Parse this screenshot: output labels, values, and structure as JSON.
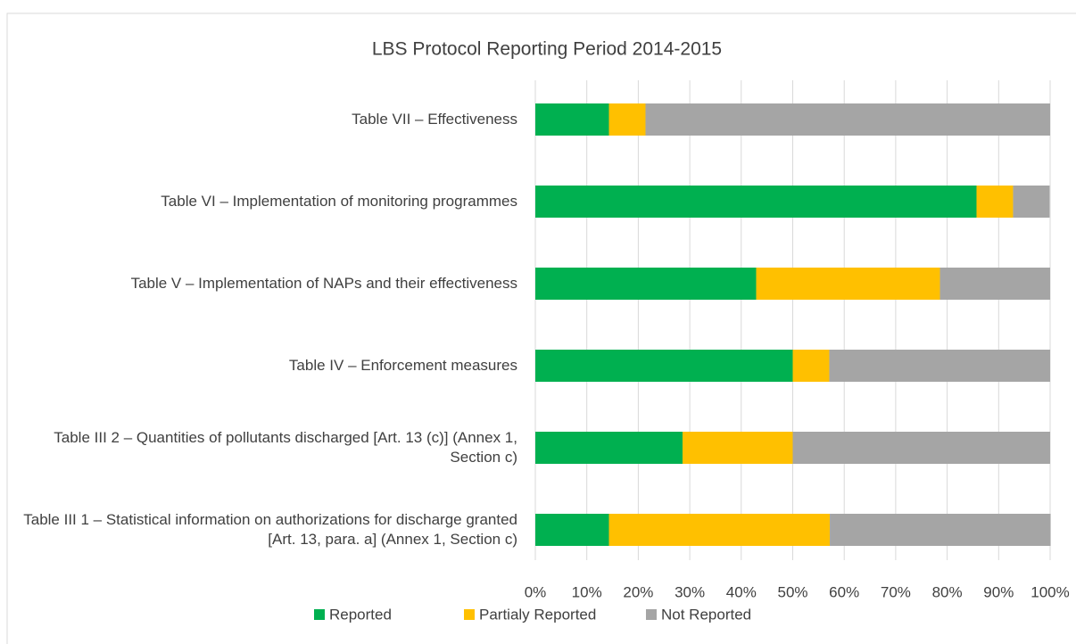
{
  "chart_data": {
    "type": "stacked_barh",
    "title": "LBS Protocol Reporting Period 2014-2015",
    "categories": [
      "Table VII – Effectiveness",
      "Table VI – Implementation of monitoring programmes",
      "Table V – Implementation of NAPs and their effectiveness",
      "Table IV – Enforcement measures",
      "Table III 2 – Quantities of pollutants discharged [Art. 13 (c)] (Annex 1, Section c)",
      "Table III 1 – Statistical information on authorizations for discharge granted [Art. 13, para. a] (Annex 1, Section c)"
    ],
    "series": [
      {
        "name": "Reported",
        "color": "#00b050",
        "values": [
          14.3,
          85.7,
          42.9,
          50,
          28.6,
          14.3
        ]
      },
      {
        "name": "Partialy Reported",
        "color": "#ffc000",
        "values": [
          7.1,
          7.1,
          35.7,
          7.1,
          21.4,
          42.9
        ]
      },
      {
        "name": "Not Reported",
        "color": "#a5a5a5",
        "values": [
          78.6,
          7.1,
          21.4,
          42.9,
          50,
          42.9
        ]
      }
    ],
    "xlim": [
      0,
      100
    ],
    "xticks": [
      {
        "value": 0,
        "label": "0%"
      },
      {
        "value": 10,
        "label": "10%"
      },
      {
        "value": 20,
        "label": "20%"
      },
      {
        "value": 30,
        "label": "30%"
      },
      {
        "value": 40,
        "label": "40%"
      },
      {
        "value": 50,
        "label": "50%"
      },
      {
        "value": 60,
        "label": "60%"
      },
      {
        "value": 70,
        "label": "70%"
      },
      {
        "value": 80,
        "label": "80%"
      },
      {
        "value": 90,
        "label": "90%"
      },
      {
        "value": 100,
        "label": "100%"
      }
    ],
    "grid": true,
    "legend": "bottom"
  }
}
